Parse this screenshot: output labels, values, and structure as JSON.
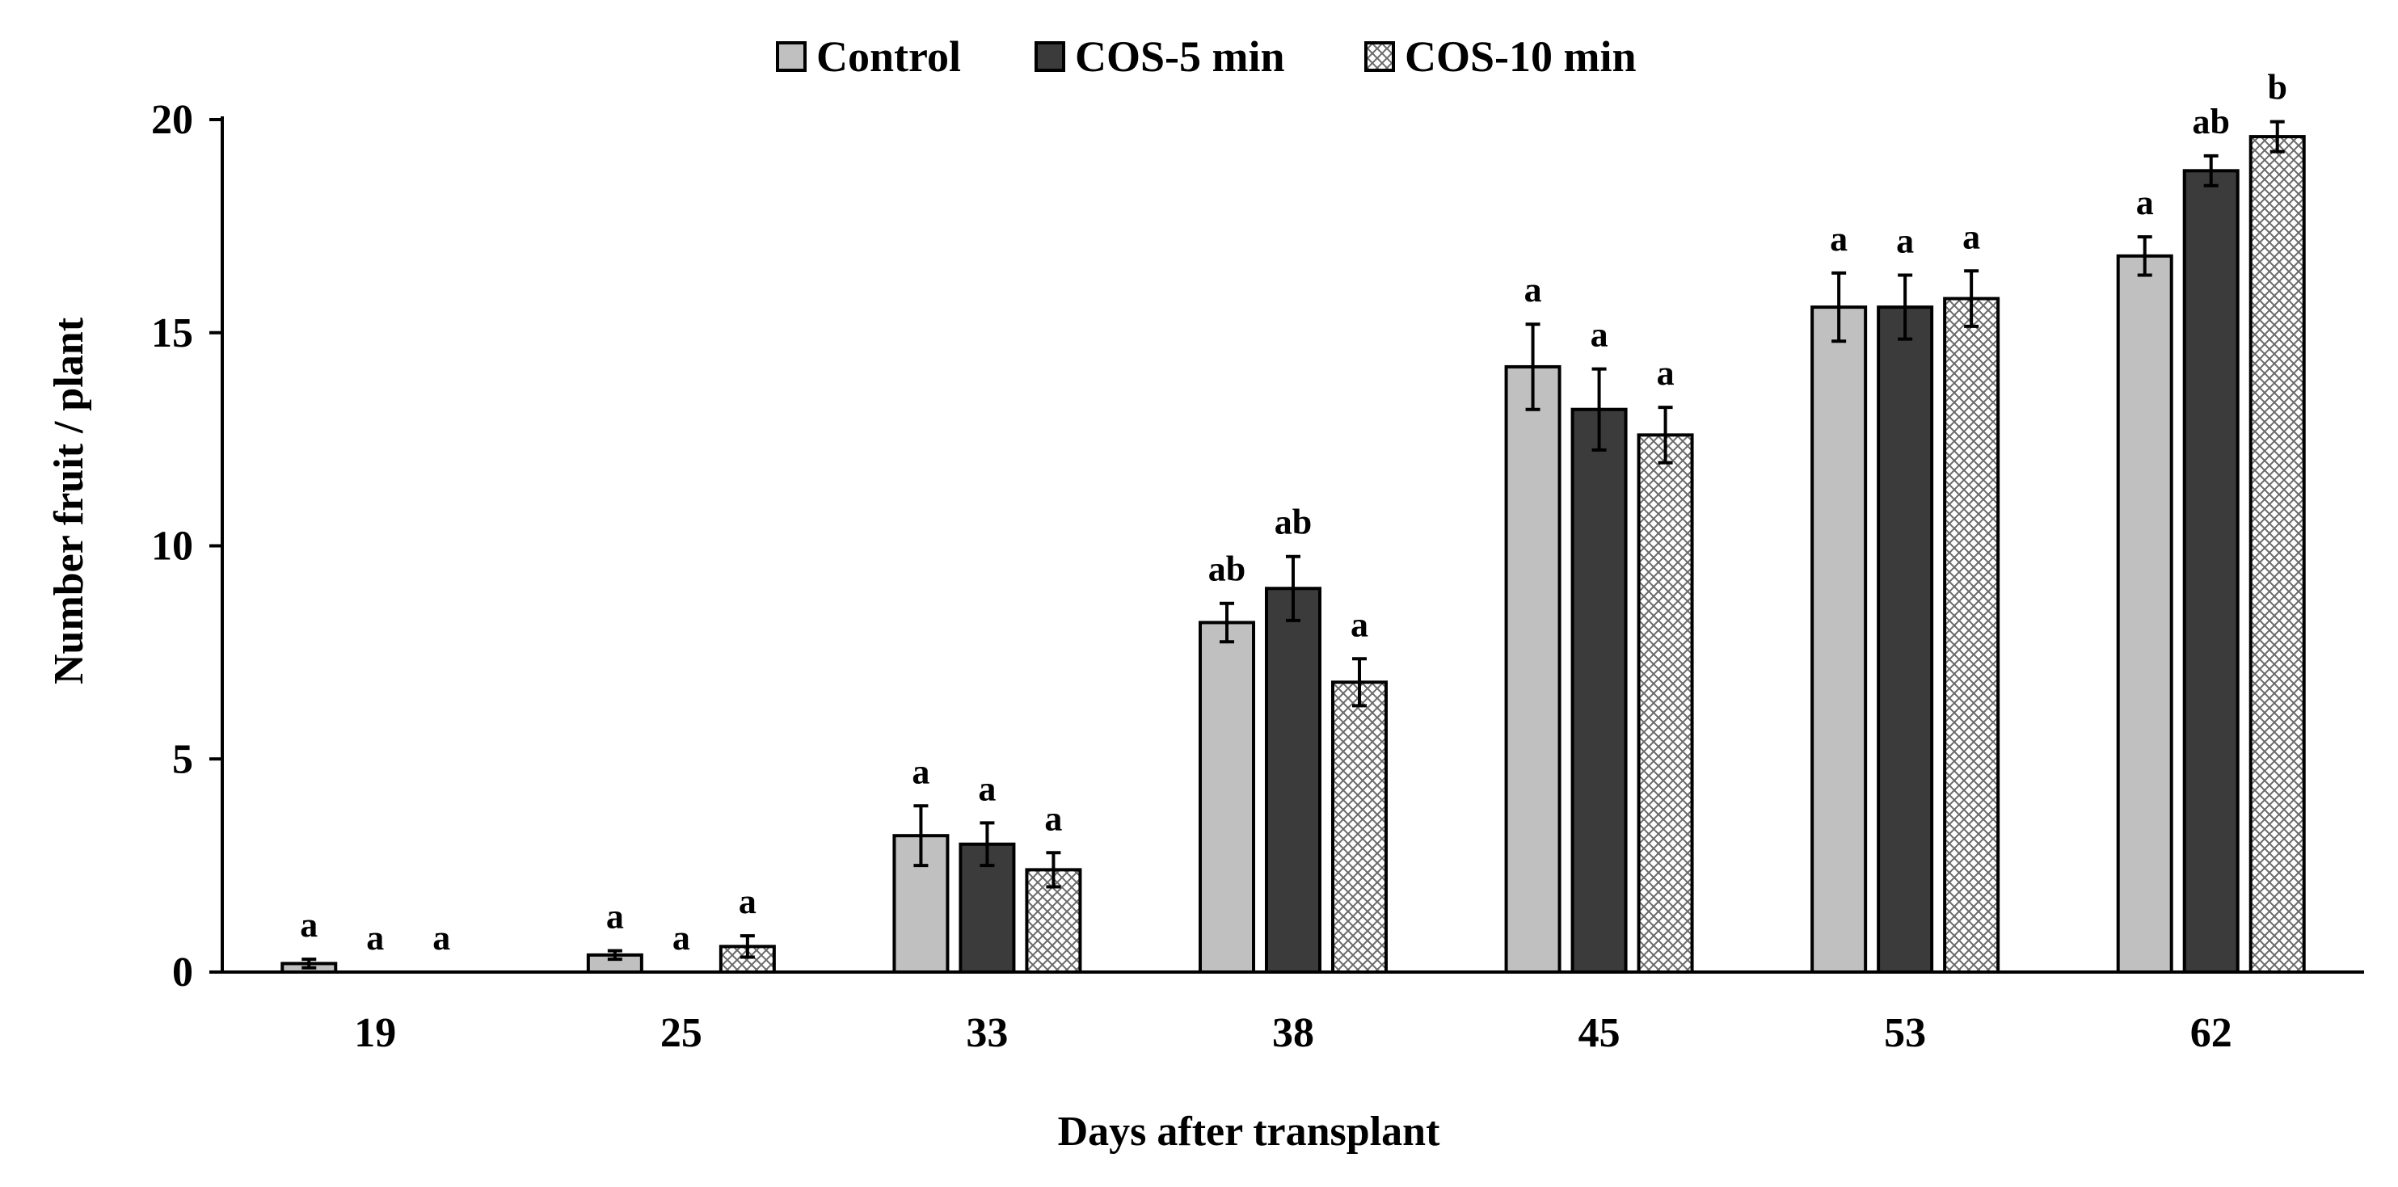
{
  "chart_data": {
    "type": "bar",
    "title": "",
    "xlabel": "Days after transplant",
    "ylabel": "Number fruit / plant",
    "ylim": [
      0,
      20
    ],
    "yticks": [
      0,
      5,
      10,
      15,
      20
    ],
    "grid": false,
    "legend_position": "top-center",
    "categories": [
      "19",
      "25",
      "33",
      "38",
      "45",
      "53",
      "62"
    ],
    "series": [
      {
        "name": "Control",
        "color": "#c0c0c0",
        "pattern": "solid",
        "values": [
          0.2,
          0.4,
          3.2,
          8.2,
          14.2,
          15.6,
          16.8
        ],
        "errors": [
          0.1,
          0.1,
          0.7,
          0.45,
          1.0,
          0.8,
          0.45
        ],
        "labels": [
          "a",
          "a",
          "a",
          "ab",
          "a",
          "a",
          "a"
        ]
      },
      {
        "name": "COS-5 min",
        "color": "#3b3b3b",
        "pattern": "solid",
        "values": [
          0,
          0,
          3.0,
          9.0,
          13.2,
          15.6,
          18.8
        ],
        "errors": [
          0,
          0,
          0.5,
          0.75,
          0.95,
          0.75,
          0.35
        ],
        "labels": [
          "a",
          "a",
          "a",
          "ab",
          "a",
          "a",
          "ab"
        ]
      },
      {
        "name": "COS-10 min",
        "color": "#ffffff",
        "pattern": "crosshatch",
        "values": [
          0,
          0.6,
          2.4,
          6.8,
          12.6,
          15.8,
          19.6
        ],
        "errors": [
          0,
          0.25,
          0.4,
          0.55,
          0.65,
          0.65,
          0.35
        ],
        "labels": [
          "a",
          "a",
          "a",
          "a",
          "a",
          "a",
          "b"
        ]
      }
    ]
  }
}
